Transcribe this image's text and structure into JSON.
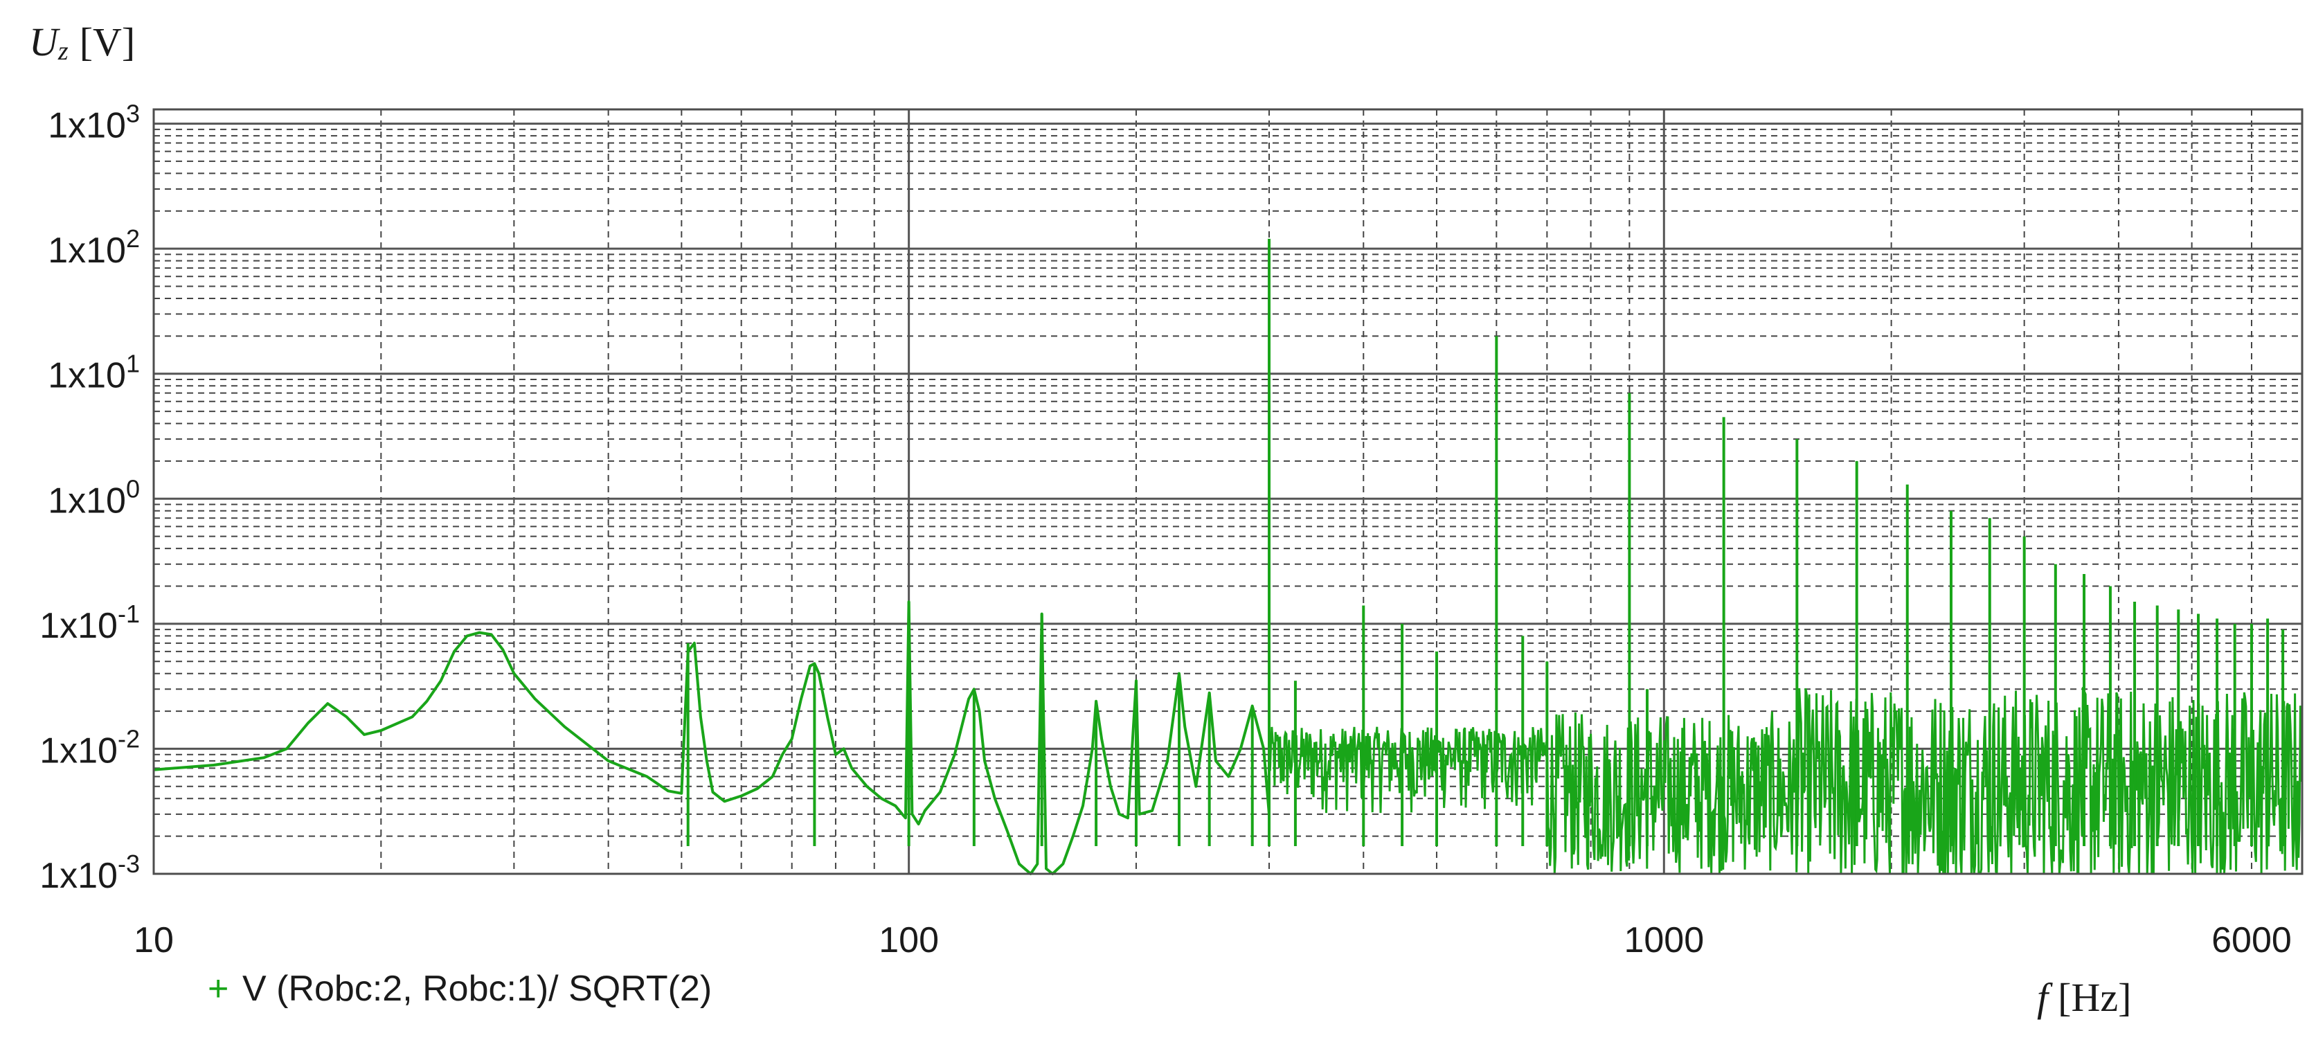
{
  "chart_data": {
    "type": "line",
    "title": "",
    "ylabel_var": "U",
    "ylabel_sub": "z",
    "ylabel_unit": "[V]",
    "xlabel_var": "f",
    "xlabel_unit": "[Hz]",
    "x_scale": "log",
    "y_scale": "log",
    "xlim": [
      10,
      7000
    ],
    "ylim": [
      0.001,
      1300
    ],
    "grid": true,
    "x_tick_labels": [
      {
        "value": 10,
        "label": "10"
      },
      {
        "value": 100,
        "label": "100"
      },
      {
        "value": 1000,
        "label": "1000"
      },
      {
        "value": 6000,
        "label": "6000"
      }
    ],
    "y_tick_labels": [
      {
        "value": 1000,
        "base": "1x10",
        "exp": "3"
      },
      {
        "value": 100,
        "base": "1x10",
        "exp": "2"
      },
      {
        "value": 10,
        "base": "1x10",
        "exp": "1"
      },
      {
        "value": 1,
        "base": "1x10",
        "exp": "0"
      },
      {
        "value": 0.1,
        "base": "1x10",
        "exp": "-1"
      },
      {
        "value": 0.01,
        "base": "1x10",
        "exp": "-2"
      },
      {
        "value": 0.001,
        "base": "1x10",
        "exp": "-3"
      }
    ],
    "legend": {
      "position": "bottom-left",
      "marker": "+",
      "label": "V (Robc:2, Robc:1)/ SQRT(2)"
    },
    "series": [
      {
        "name": "V (Robc:2, Robc:1)/ SQRT(2)",
        "color": "#19a519",
        "baseline_points": [
          [
            10,
            0.0068
          ],
          [
            12,
            0.0074
          ],
          [
            14,
            0.0085
          ],
          [
            15,
            0.01
          ],
          [
            16,
            0.016
          ],
          [
            17,
            0.023
          ],
          [
            18,
            0.018
          ],
          [
            19,
            0.013
          ],
          [
            20,
            0.014
          ],
          [
            22,
            0.018
          ],
          [
            23,
            0.024
          ],
          [
            24,
            0.035
          ],
          [
            25,
            0.06
          ],
          [
            26,
            0.08
          ],
          [
            27,
            0.085
          ],
          [
            28,
            0.082
          ],
          [
            29,
            0.062
          ],
          [
            30,
            0.04
          ],
          [
            32,
            0.025
          ],
          [
            35,
            0.015
          ],
          [
            40,
            0.008
          ],
          [
            45,
            0.006
          ],
          [
            48,
            0.0046
          ],
          [
            50,
            0.0044
          ],
          [
            51,
            0.06
          ],
          [
            52,
            0.07
          ],
          [
            53,
            0.018
          ],
          [
            54,
            0.008
          ],
          [
            55,
            0.0045
          ],
          [
            57,
            0.0038
          ],
          [
            60,
            0.0042
          ],
          [
            63,
            0.0048
          ],
          [
            66,
            0.006
          ],
          [
            68,
            0.009
          ],
          [
            70,
            0.012
          ],
          [
            72,
            0.025
          ],
          [
            74,
            0.046
          ],
          [
            75,
            0.048
          ],
          [
            76,
            0.04
          ],
          [
            78,
            0.018
          ],
          [
            80,
            0.009
          ],
          [
            82,
            0.01
          ],
          [
            84,
            0.007
          ],
          [
            88,
            0.005
          ],
          [
            92,
            0.004
          ],
          [
            96,
            0.0035
          ],
          [
            98,
            0.003
          ],
          [
            99,
            0.0028
          ],
          [
            100,
            0.15
          ],
          [
            101,
            0.003
          ],
          [
            103,
            0.0025
          ],
          [
            105,
            0.0032
          ],
          [
            110,
            0.0045
          ],
          [
            115,
            0.009
          ],
          [
            120,
            0.025
          ],
          [
            122,
            0.03
          ],
          [
            124,
            0.02
          ],
          [
            126,
            0.008
          ],
          [
            130,
            0.004
          ],
          [
            135,
            0.0022
          ],
          [
            140,
            0.0012
          ],
          [
            145,
            0.0009
          ],
          [
            148,
            0.0012
          ],
          [
            150,
            0.12
          ],
          [
            152,
            0.0011
          ],
          [
            155,
            0.0009
          ],
          [
            160,
            0.0012
          ],
          [
            165,
            0.002
          ],
          [
            170,
            0.0035
          ],
          [
            175,
            0.01
          ],
          [
            177,
            0.024
          ],
          [
            180,
            0.012
          ],
          [
            185,
            0.005
          ],
          [
            190,
            0.003
          ],
          [
            195,
            0.0028
          ],
          [
            200,
            0.035
          ],
          [
            202,
            0.003
          ],
          [
            210,
            0.0032
          ],
          [
            220,
            0.008
          ],
          [
            228,
            0.04
          ],
          [
            232,
            0.015
          ],
          [
            240,
            0.005
          ],
          [
            250,
            0.028
          ],
          [
            255,
            0.008
          ],
          [
            265,
            0.006
          ],
          [
            275,
            0.01
          ],
          [
            285,
            0.022
          ],
          [
            295,
            0.01
          ],
          [
            300,
            0.003
          ]
        ],
        "peaks": [
          [
            51,
            0.07
          ],
          [
            75,
            0.048
          ],
          [
            100,
            0.15
          ],
          [
            122,
            0.03
          ],
          [
            150,
            0.12
          ],
          [
            177,
            0.024
          ],
          [
            200,
            0.035
          ],
          [
            228,
            0.04
          ],
          [
            250,
            0.028
          ],
          [
            285,
            0.022
          ],
          [
            300,
            120
          ],
          [
            325,
            0.035
          ],
          [
            400,
            0.14
          ],
          [
            450,
            0.1
          ],
          [
            500,
            0.06
          ],
          [
            600,
            20
          ],
          [
            650,
            0.08
          ],
          [
            700,
            0.05
          ],
          [
            900,
            7
          ],
          [
            950,
            0.03
          ],
          [
            1200,
            4.5
          ],
          [
            1500,
            3
          ],
          [
            1800,
            2
          ],
          [
            2100,
            1.3
          ],
          [
            2400,
            0.8
          ],
          [
            2700,
            0.7
          ],
          [
            3000,
            0.5
          ],
          [
            3300,
            0.3
          ],
          [
            3600,
            0.25
          ],
          [
            3900,
            0.2
          ],
          [
            4200,
            0.15
          ],
          [
            4500,
            0.14
          ],
          [
            4800,
            0.13
          ],
          [
            5100,
            0.12
          ],
          [
            5400,
            0.11
          ],
          [
            5700,
            0.1
          ],
          [
            6000,
            0.1
          ],
          [
            6300,
            0.11
          ],
          [
            6600,
            0.09
          ]
        ]
      }
    ]
  }
}
